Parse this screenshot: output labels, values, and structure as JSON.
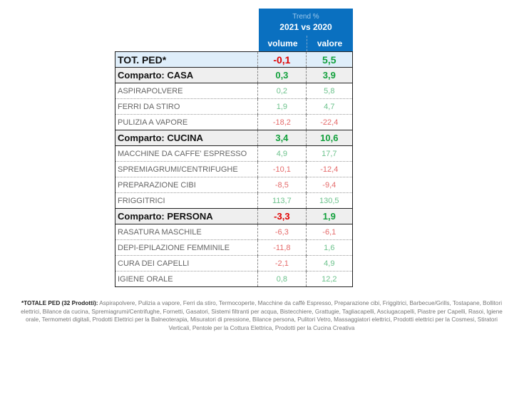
{
  "header": {
    "trend_label": "Trend %",
    "period": "2021 vs 2020",
    "columns": [
      "volume",
      "valore"
    ]
  },
  "rows": [
    {
      "type": "tot",
      "label": "TOT. PED*",
      "volume": "-0,1",
      "valore": "5,5",
      "volume_sign": "neg",
      "valore_sign": "pos"
    },
    {
      "type": "grp",
      "label": "Comparto: CASA",
      "volume": "0,3",
      "valore": "3,9",
      "volume_sign": "pos",
      "valore_sign": "pos"
    },
    {
      "type": "item",
      "label": "ASPIRAPOLVERE",
      "volume": "0,2",
      "valore": "5,8",
      "volume_sign": "pos",
      "valore_sign": "pos"
    },
    {
      "type": "item",
      "label": "FERRI DA STIRO",
      "volume": "1,9",
      "valore": "4,7",
      "volume_sign": "pos",
      "valore_sign": "pos"
    },
    {
      "type": "item",
      "label": "PULIZIA A VAPORE",
      "volume": "-18,2",
      "valore": "-22,4",
      "volume_sign": "neg",
      "valore_sign": "neg"
    },
    {
      "type": "grp",
      "label": "Comparto: CUCINA",
      "volume": "3,4",
      "valore": "10,6",
      "volume_sign": "pos",
      "valore_sign": "pos"
    },
    {
      "type": "item",
      "label": "MACCHINE DA CAFFE' ESPRESSO",
      "volume": "4,9",
      "valore": "17,7",
      "volume_sign": "pos",
      "valore_sign": "pos"
    },
    {
      "type": "item",
      "label": "SPREMIAGRUMI/CENTRIFUGHE",
      "volume": "-10,1",
      "valore": "-12,4",
      "volume_sign": "neg",
      "valore_sign": "neg"
    },
    {
      "type": "item",
      "label": "PREPARAZIONE CIBI",
      "volume": "-8,5",
      "valore": "-9,4",
      "volume_sign": "neg",
      "valore_sign": "neg"
    },
    {
      "type": "item",
      "label": "FRIGGITRICI",
      "volume": "113,7",
      "valore": "130,5",
      "volume_sign": "pos",
      "valore_sign": "pos"
    },
    {
      "type": "grp",
      "label": "Comparto: PERSONA",
      "volume": "-3,3",
      "valore": "1,9",
      "volume_sign": "neg",
      "valore_sign": "pos"
    },
    {
      "type": "item",
      "label": "RASATURA MASCHILE",
      "volume": "-6,3",
      "valore": "-6,1",
      "volume_sign": "neg",
      "valore_sign": "neg"
    },
    {
      "type": "item",
      "label": "DEPI-EPILAZIONE FEMMINILE",
      "volume": "-11,8",
      "valore": "1,6",
      "volume_sign": "neg",
      "valore_sign": "pos"
    },
    {
      "type": "item",
      "label": "CURA DEI CAPELLI",
      "volume": "-2,1",
      "valore": "4,9",
      "volume_sign": "neg",
      "valore_sign": "pos"
    },
    {
      "type": "item",
      "label": "IGIENE ORALE",
      "volume": "0,8",
      "valore": "12,2",
      "volume_sign": "pos",
      "valore_sign": "pos"
    }
  ],
  "footnote": {
    "title": "*TOTALE PED (32 Prodotti):",
    "text": "Aspirapolvere, Pulizia a vapore, Ferri da stiro, Termocoperte, Macchine da caffè Espresso, Preparazione cibi, Friggitrici, Barbecue/Grills, Tostapane, Bollitori elettrici, Bilance da cucina, Spremiagrumi/Centrifughe, Fornetti, Gasatori, Sistemi filtranti per acqua, Bistecchiere, Grattugie, Tagliacapelli, Asciugacapelli, Piastre per Capelli, Rasoi, Igiene orale, Termometri digitali, Prodotti Elettrici per la Balneoterapia, Misuratori di pressione, Bilance persona, Pulitori Vetro, Massaggiatori elettrici, Prodotti elettrici per la Cosmesi, Stiratori Verticali, Pentole per la Cottura Elettrica, Prodotti per la Cucina Creativa"
  },
  "colors": {
    "header_bg": "#0a70c0",
    "positive_strong": "#12a03c",
    "negative_strong": "#e00000",
    "positive_light": "#6cc28c",
    "negative_light": "#e56b6b",
    "total_row_bg": "#dfeefa",
    "group_row_bg": "#efefef"
  }
}
